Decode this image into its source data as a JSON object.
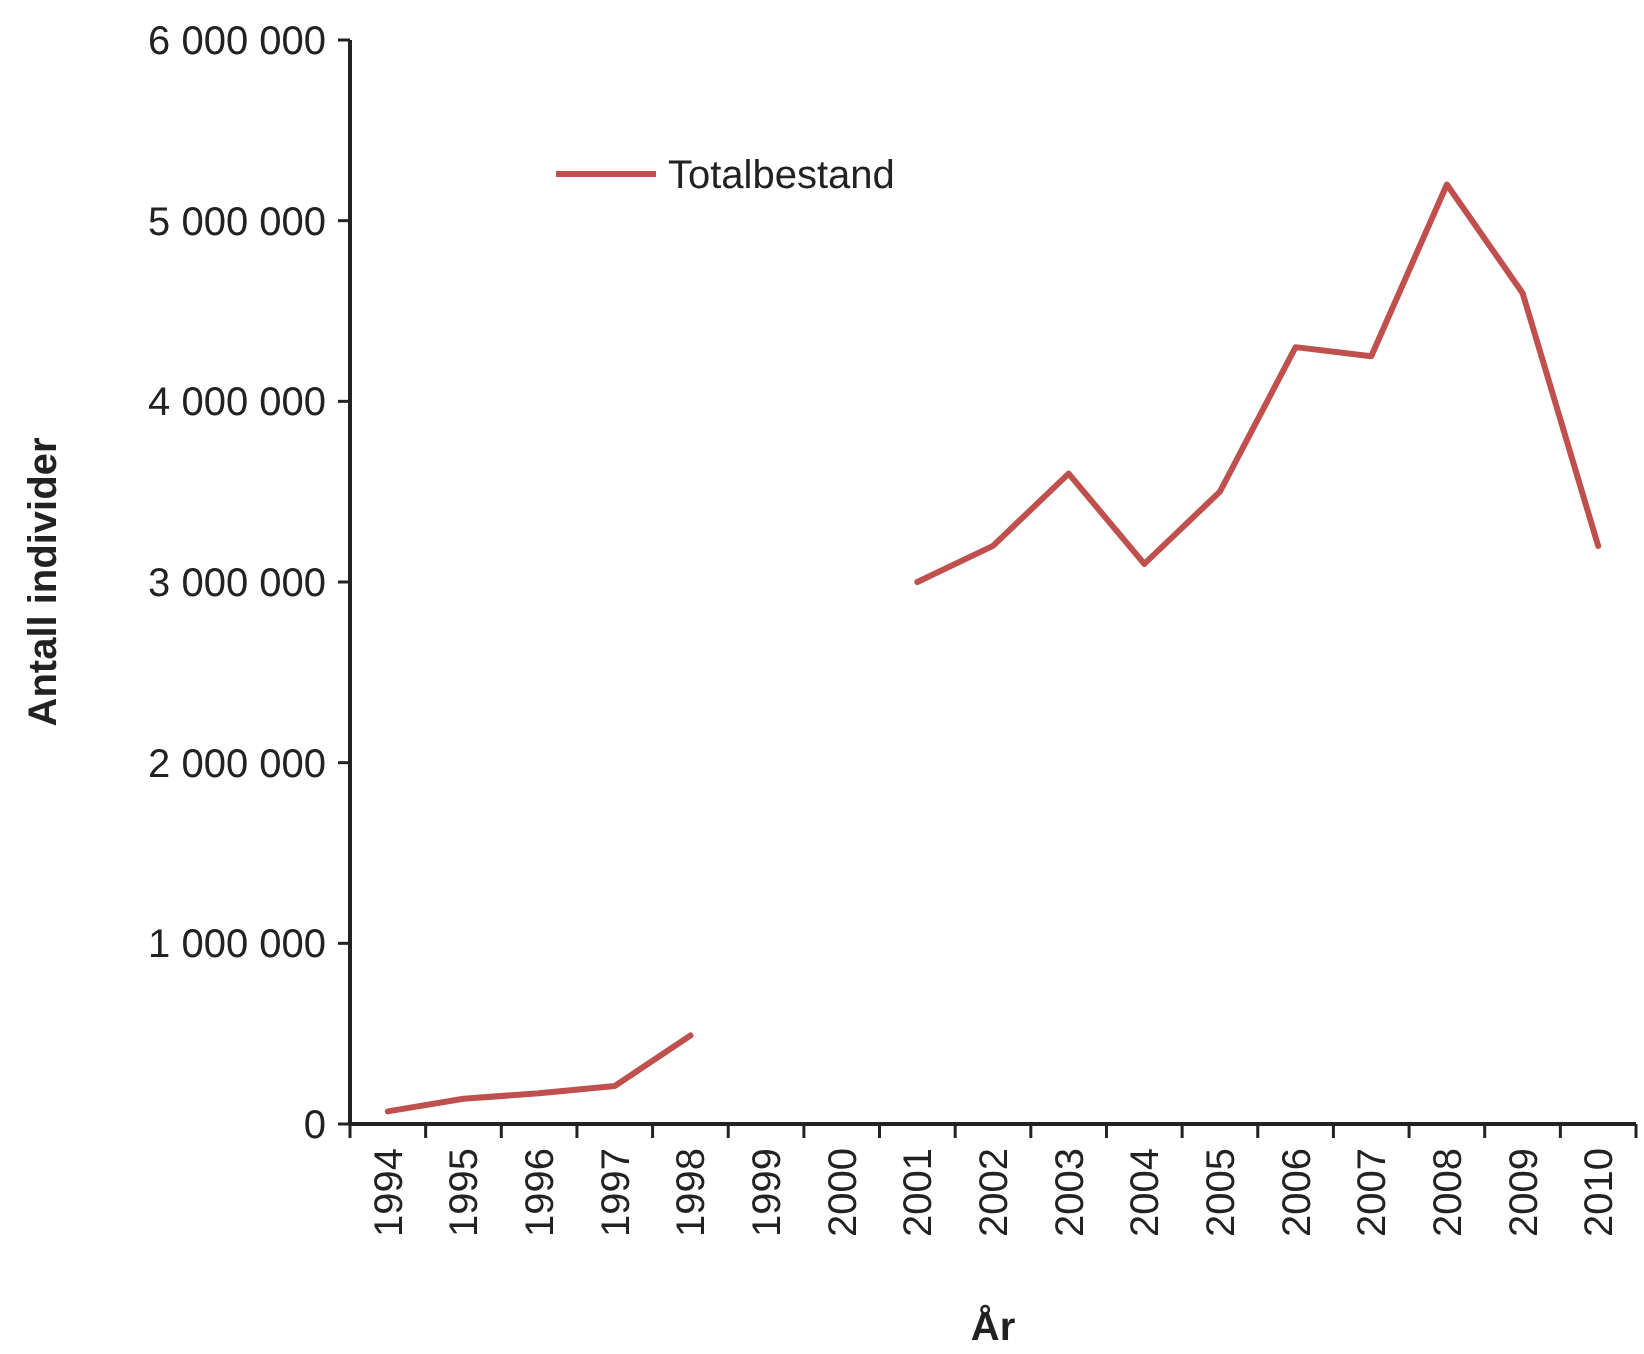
{
  "chart_data": {
    "type": "line",
    "xlabel": "År",
    "ylabel": "Antall individer",
    "categories": [
      "1994",
      "1995",
      "1996",
      "1997",
      "1998",
      "1999",
      "2000",
      "2001",
      "2002",
      "2003",
      "2004",
      "2005",
      "2006",
      "2007",
      "2008",
      "2009",
      "2010"
    ],
    "series": [
      {
        "name": "Totalbestand",
        "color": "#c0504d",
        "values": [
          70000,
          140000,
          170000,
          210000,
          490000,
          null,
          null,
          3000000,
          3200000,
          3600000,
          3100000,
          3500000,
          4300000,
          4250000,
          5200000,
          4600000,
          3200000
        ]
      }
    ],
    "ylim": [
      0,
      6000000
    ],
    "yticks": [
      {
        "value": 0,
        "label": "0"
      },
      {
        "value": 1000000,
        "label": "1 000 000"
      },
      {
        "value": 2000000,
        "label": "2 000 000"
      },
      {
        "value": 3000000,
        "label": "3 000 000"
      },
      {
        "value": 4000000,
        "label": "4 000 000"
      },
      {
        "value": 5000000,
        "label": "5 000 000"
      },
      {
        "value": 6000000,
        "label": "6 000 000"
      }
    ],
    "legend": "top left",
    "marker": "none",
    "line_style": "solid"
  }
}
